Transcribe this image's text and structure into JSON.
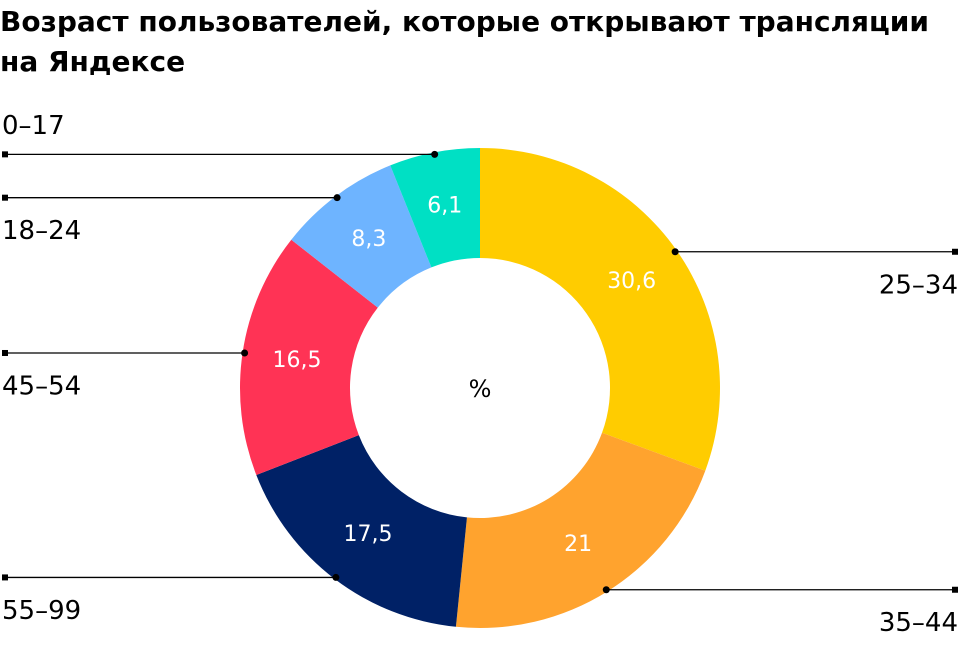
{
  "chart_data": {
    "type": "donut",
    "title": "Возраст пользователей, которые открывают трансляции на Яндексе",
    "center_label": "%",
    "categories": [
      "25–34",
      "35–44",
      "55–99",
      "45–54",
      "18–24",
      "0–17"
    ],
    "values": [
      30.6,
      21,
      17.5,
      16.5,
      8.3,
      6.1
    ],
    "value_labels": [
      "30,6",
      "21",
      "17,5",
      "16,5",
      "8,3",
      "6,1"
    ],
    "colors": [
      "#ffcc00",
      "#ffa32e",
      "#002166",
      "#ff3355",
      "#6eb4ff",
      "#00e0c4"
    ]
  }
}
